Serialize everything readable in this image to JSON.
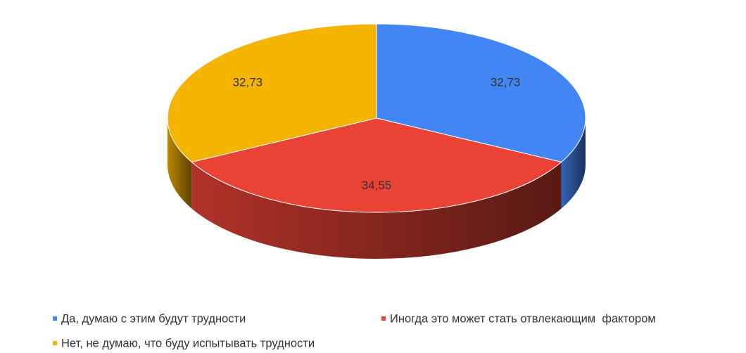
{
  "chart_data": {
    "type": "pie3d",
    "categories": [
      "Да, думаю с этим будут трудности",
      "Иногда это может стать отвлекающим  фактором",
      "Нет, не думаю, что буду испытывать трудности"
    ],
    "values": [
      32.73,
      34.55,
      32.73
    ],
    "value_labels": [
      "32,73",
      "34,55",
      "32,73"
    ],
    "colors": [
      "#4285f4",
      "#ea4335",
      "#f4b400"
    ],
    "legend": "bottom"
  }
}
